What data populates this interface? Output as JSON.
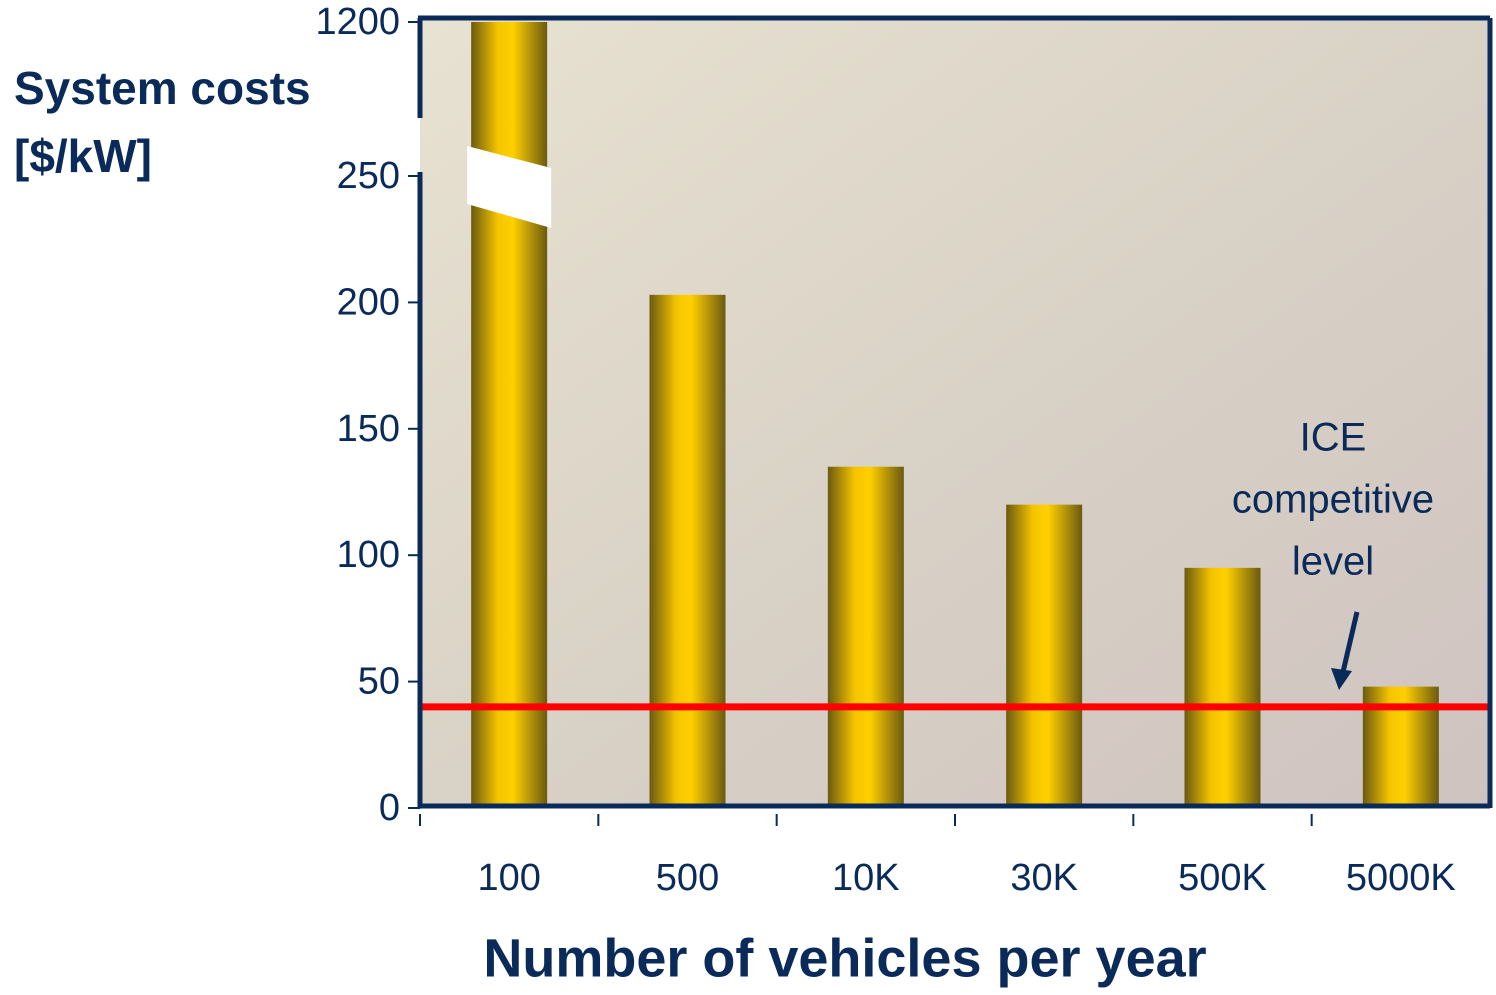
{
  "chart_data": {
    "type": "bar",
    "ylabel_lines": [
      "System costs",
      "[$/kW]"
    ],
    "xlabel": "Number of vehicles per year",
    "categories": [
      "100",
      "500",
      "10K",
      "30K",
      "500K",
      "5000K"
    ],
    "values": [
      1200,
      203,
      135,
      120,
      95,
      48
    ],
    "ylim": [
      0,
      1200
    ],
    "yticks": [
      0,
      50,
      100,
      150,
      200,
      250,
      1200
    ],
    "axis_break": [
      250,
      1200
    ],
    "reference_line": {
      "value": 40,
      "color": "#ff0000"
    },
    "annotation_lines": [
      "ICE",
      "competitive",
      "level"
    ]
  }
}
